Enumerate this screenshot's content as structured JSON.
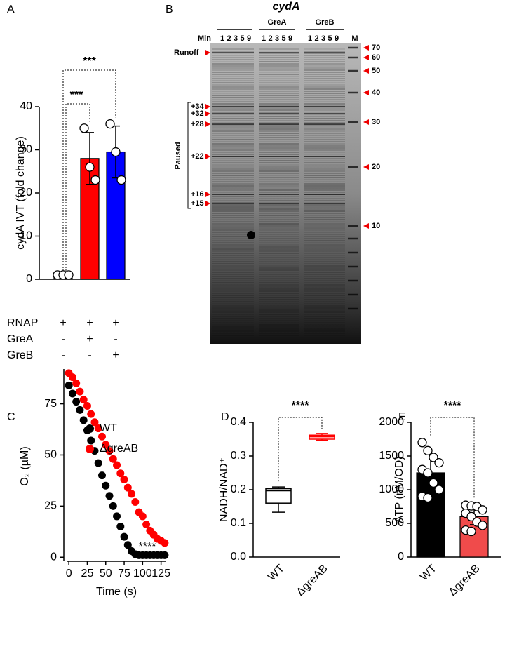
{
  "chart_data": [
    {
      "type": "bar",
      "label": "A",
      "ylabel": "cydA IVT (fold change)",
      "categories": [
        null,
        null,
        null
      ],
      "values": [
        0.9,
        28,
        29.5
      ],
      "errors": [
        0.2,
        6,
        6
      ],
      "points": [
        [
          1,
          1,
          1
        ],
        [
          35,
          26,
          23
        ],
        [
          36,
          29.5,
          23
        ]
      ],
      "colors": [
        "#ffffff",
        "#ff0000",
        "#0000ff"
      ],
      "ylim": [
        0,
        40
      ],
      "yticks": [
        0,
        10,
        20,
        30,
        40
      ],
      "annotations": [
        "***",
        "***"
      ],
      "conditions": [
        {
          "name": "RNAP",
          "signs": [
            "+",
            "+",
            "+"
          ]
        },
        {
          "name": "GreA",
          "signs": [
            "-",
            "+",
            "-"
          ]
        },
        {
          "name": "GreB",
          "signs": [
            "-",
            "-",
            "+"
          ]
        }
      ]
    },
    {
      "type": "scatter",
      "label": "C",
      "xlabel": "Time (s)",
      "ylabel": "O₂ (µM)",
      "x": [
        0,
        5,
        10,
        15,
        20,
        25,
        30,
        35,
        40,
        45,
        50,
        55,
        60,
        65,
        70,
        75,
        80,
        85,
        90,
        95,
        100,
        105,
        110,
        115,
        120,
        125,
        130
      ],
      "series": [
        {
          "name": "WT",
          "color": "#000000",
          "values": [
            84,
            80,
            76,
            72,
            67,
            62,
            57,
            52,
            46,
            40,
            35,
            30,
            25,
            20,
            15,
            10,
            6,
            3,
            1.5,
            1,
            1,
            1,
            1,
            1,
            1,
            1,
            1
          ]
        },
        {
          "name": "ΔgreAB",
          "color": "#ff0000",
          "values": [
            90,
            88,
            85,
            81,
            77,
            74,
            70,
            66,
            63,
            59,
            55,
            52,
            48,
            45,
            41,
            38,
            34,
            31,
            27,
            22,
            20,
            16,
            13,
            11,
            9,
            8,
            7
          ]
        }
      ],
      "xlim": [
        -3,
        132
      ],
      "ylim": [
        -3,
        92
      ],
      "xticks": [
        0,
        25,
        50,
        75,
        100,
        125
      ],
      "yticks": [
        0,
        25,
        50,
        75
      ],
      "annotations": [
        "****"
      ],
      "legend": "top-right"
    },
    {
      "type": "box",
      "label": "D",
      "ylabel": "NADH/NAD⁺",
      "categories": [
        "WT",
        "ΔgreAB"
      ],
      "boxes": [
        {
          "min": 0.133,
          "q1": 0.16,
          "median": 0.197,
          "q3": 0.203,
          "max": 0.208
        },
        {
          "min": 0.347,
          "q1": 0.35,
          "median": 0.357,
          "q3": 0.362,
          "max": 0.367
        }
      ],
      "colors": [
        "#000000",
        "#ff0000"
      ],
      "ylim": [
        0,
        0.4
      ],
      "yticks": [
        {
          "value": 0,
          "label": "0.0"
        },
        0.1,
        0.2,
        0.3,
        0.4
      ],
      "annotations": [
        "****"
      ]
    },
    {
      "type": "bar",
      "label": "E",
      "ylabel": "ATP (nM/OD)",
      "categories": [
        "WT",
        "ΔgreAB"
      ],
      "values": [
        1250,
        600
      ],
      "errors": [
        290,
        120
      ],
      "points": [
        [
          1700,
          1580,
          1480,
          1400,
          1300,
          1250,
          1100,
          1000,
          900,
          880
        ],
        [
          770,
          760,
          750,
          700,
          650,
          600,
          520,
          470,
          400,
          380
        ]
      ],
      "colors": [
        "#000000",
        "#f04b4b"
      ],
      "ylim": [
        0,
        2000
      ],
      "yticks": [
        0,
        500,
        1000,
        1500,
        2000
      ],
      "annotations": [
        "****"
      ]
    }
  ],
  "gel": {
    "label": "B",
    "title": "cydA",
    "groups": [
      "GreA",
      "GreB"
    ],
    "min_label": "Min",
    "lanes": [
      "1",
      "2",
      "3",
      "5",
      "9"
    ],
    "marker": "M",
    "left_labels": [
      "Runoff",
      "+34",
      "+32",
      "+28",
      "+22",
      "+16",
      "+15"
    ],
    "bracket_label": "Paused",
    "right_labels": [
      70,
      60,
      50,
      40,
      30,
      20,
      10
    ]
  }
}
